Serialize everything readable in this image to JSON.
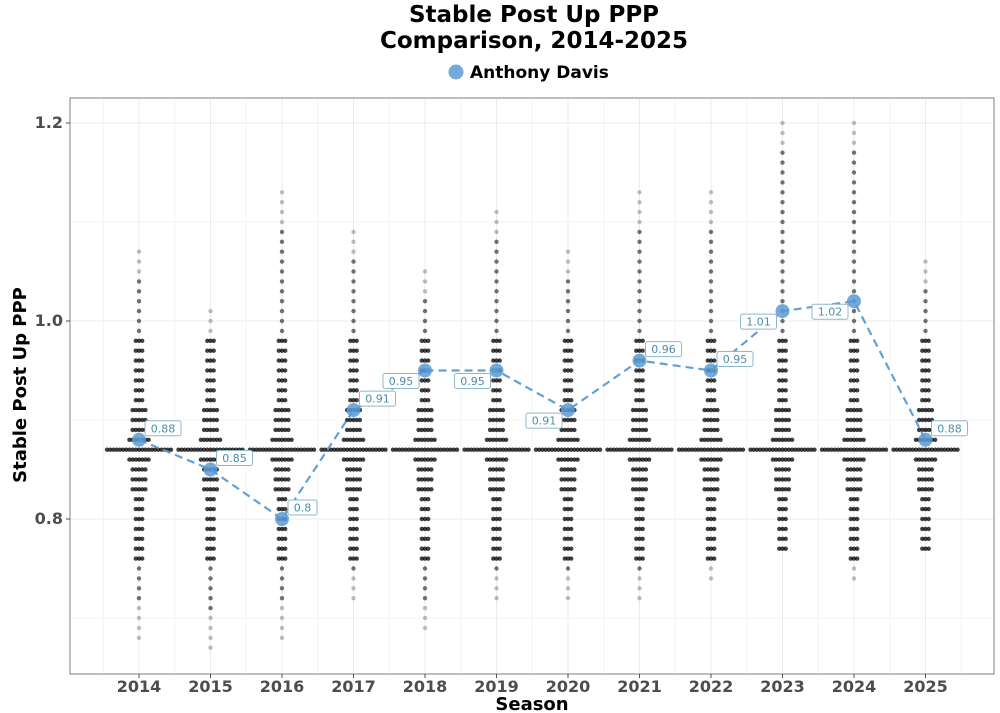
{
  "chart_data": {
    "type": "scatter",
    "title_lines": [
      "Stable Post Up PPP",
      "Comparison, 2014-2025"
    ],
    "xlabel": "Season",
    "ylabel": "Stable Post Up PPP",
    "categories": [
      "2014",
      "2015",
      "2016",
      "2017",
      "2018",
      "2019",
      "2020",
      "2021",
      "2022",
      "2023",
      "2024",
      "2025"
    ],
    "ylim": [
      0.64,
      1.23
    ],
    "yticks": [
      0.8,
      1.0,
      1.2
    ],
    "ytick_labels": [
      "0.8",
      "1.0",
      "1.2"
    ],
    "grid": true,
    "legend_position": "top",
    "colors": {
      "highlight": "#5b9bd5",
      "highlight_line": "#5b9bd5",
      "label_text": "#4a8fa8",
      "label_border": "#8fb8c8",
      "league_points": "#000000",
      "grid": "#ebebeb",
      "panel_border": "#7f7f7f"
    },
    "series": [
      {
        "name": "Anthony Davis",
        "values": [
          0.88,
          0.85,
          0.8,
          0.91,
          0.95,
          0.95,
          0.91,
          0.96,
          0.95,
          1.01,
          1.02,
          0.88
        ],
        "labels": [
          "0.88",
          "0.85",
          "0.8",
          "0.91",
          "0.95",
          "0.95",
          "0.91",
          "0.96",
          "0.95",
          "1.01",
          "1.02",
          "0.88"
        ]
      }
    ],
    "league_distribution": {
      "description": "All players per season",
      "mode_value": 0.87,
      "per_season": [
        {
          "min": 0.68,
          "max": 1.07
        },
        {
          "min": 0.67,
          "max": 1.01
        },
        {
          "min": 0.68,
          "max": 1.13
        },
        {
          "min": 0.72,
          "max": 1.09
        },
        {
          "min": 0.69,
          "max": 1.05
        },
        {
          "min": 0.72,
          "max": 1.11
        },
        {
          "min": 0.72,
          "max": 1.07
        },
        {
          "min": 0.72,
          "max": 1.13
        },
        {
          "min": 0.74,
          "max": 1.13
        },
        {
          "min": 0.77,
          "max": 1.2
        },
        {
          "min": 0.74,
          "max": 1.2
        },
        {
          "min": 0.77,
          "max": 1.06
        }
      ]
    }
  }
}
